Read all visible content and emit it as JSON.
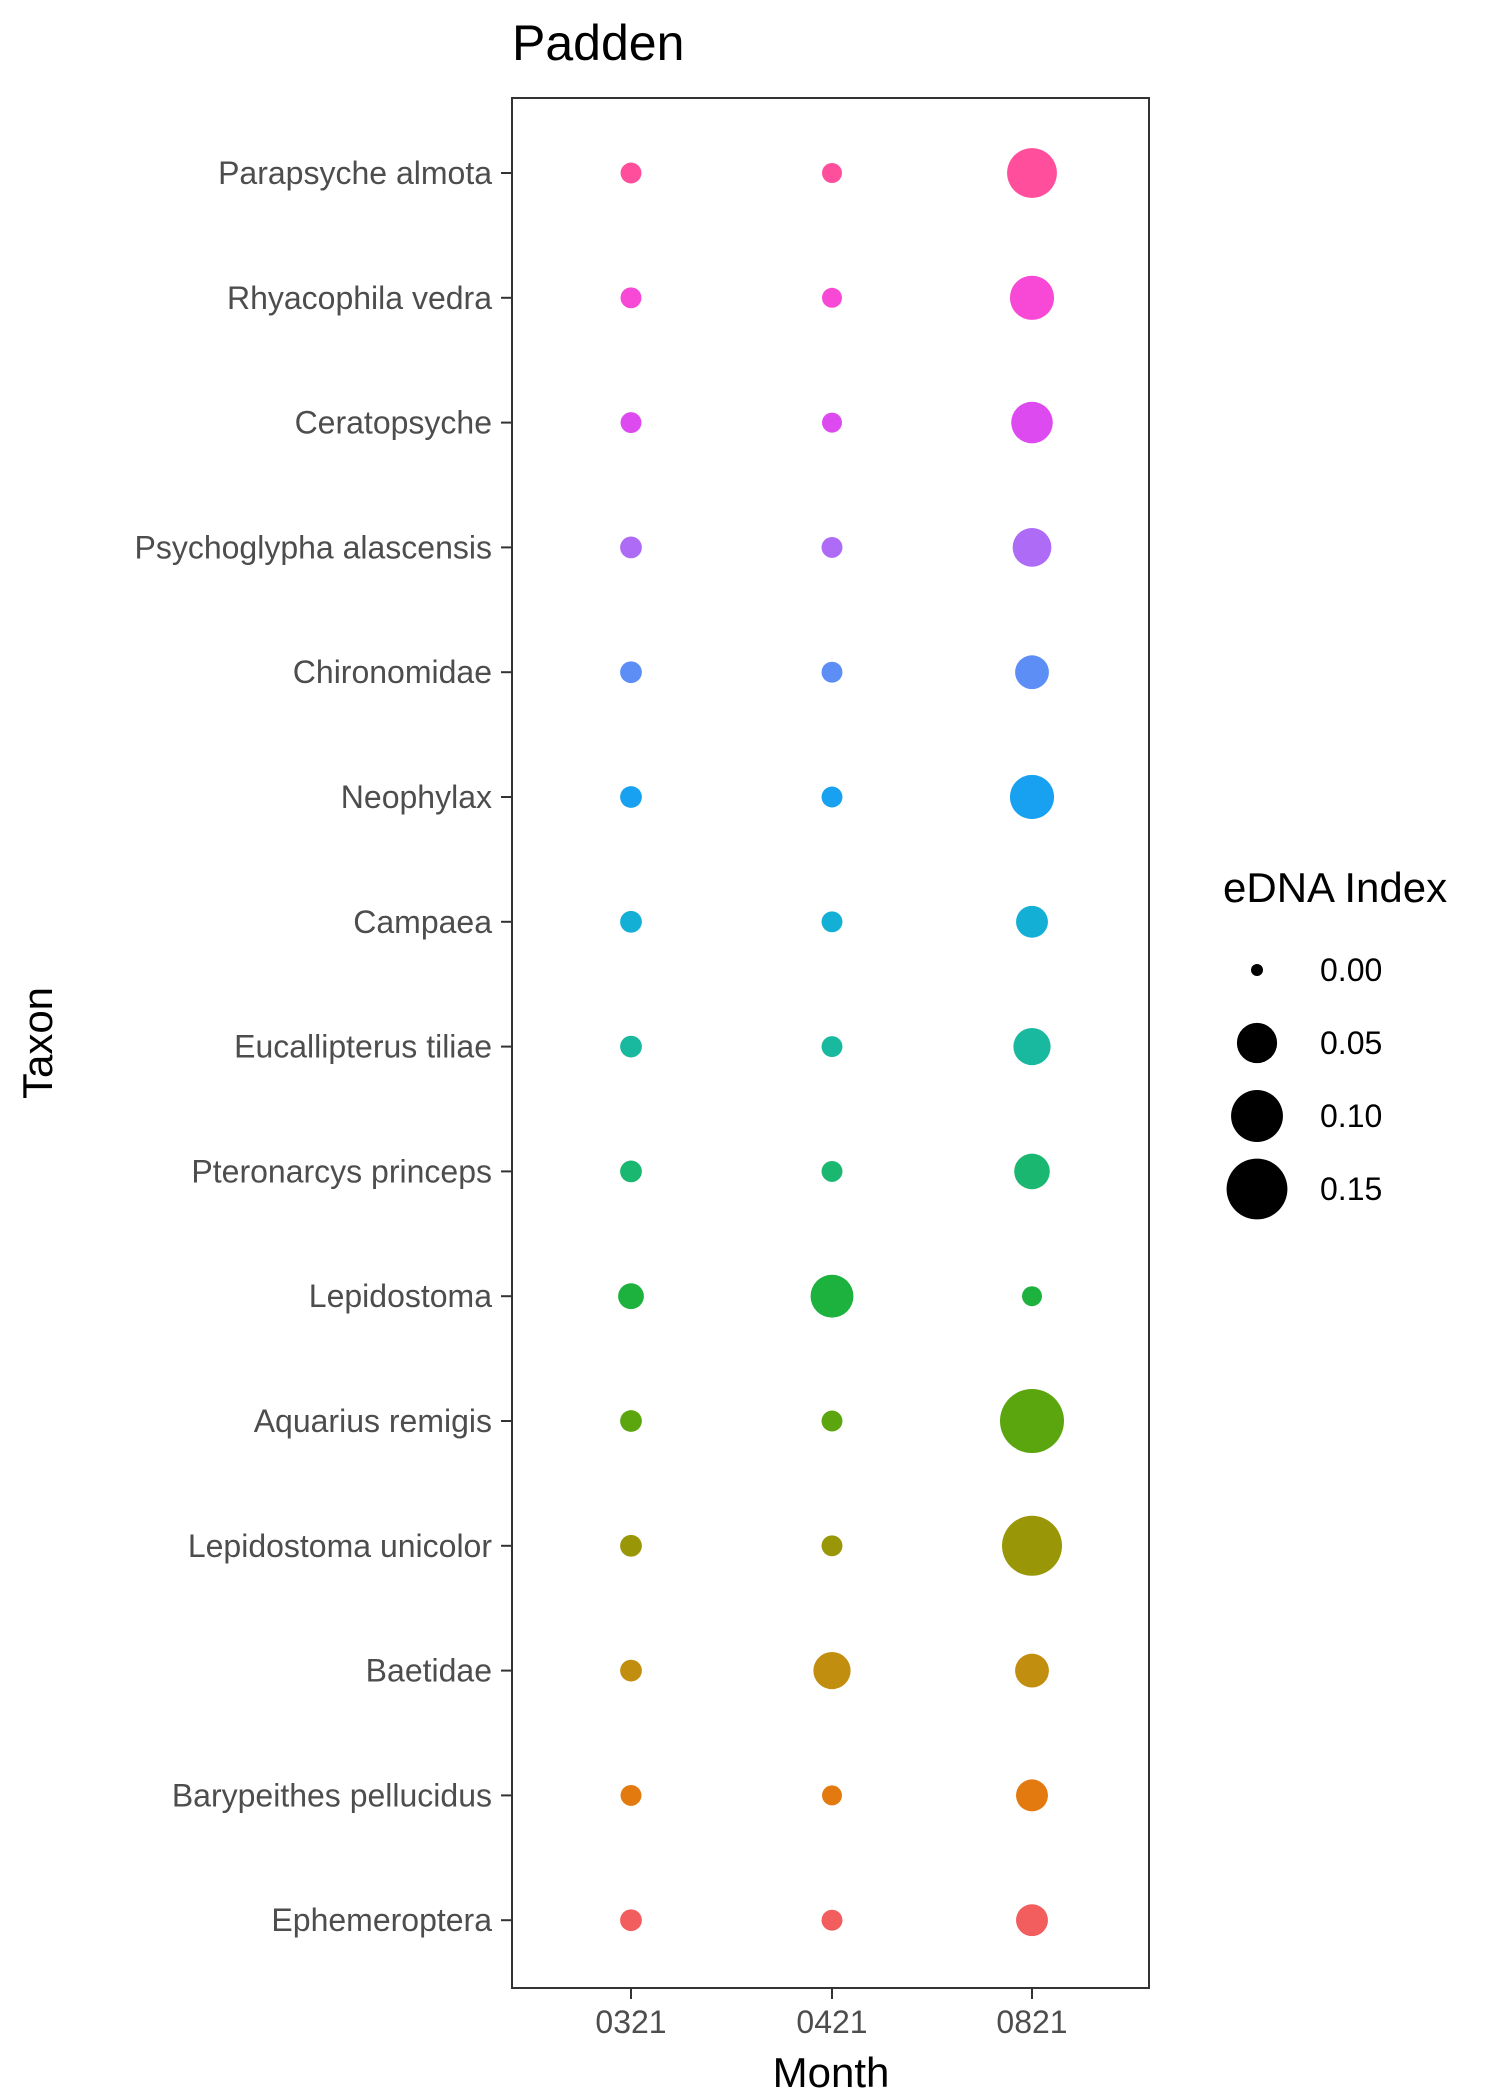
{
  "chart_data": {
    "type": "scatter",
    "title": "Padden",
    "xlabel": "Month",
    "ylabel": "Taxon",
    "x_categories": [
      "0321",
      "0421",
      "0821"
    ],
    "y_categories": [
      "Parapsyche almota",
      "Rhyacophila vedra",
      "Ceratopsyche",
      "Psychoglypha alascensis",
      "Chironomidae",
      "Neophylax",
      "Campaea",
      "Eucallipterus tiliae",
      "Pteronarcys princeps",
      "Lepidostoma",
      "Aquarius remigis",
      "Lepidostoma unicolor",
      "Baetidae",
      "Barypeithes pellucidus",
      "Ephemeroptera"
    ],
    "colors": {
      "Parapsyche almota": "#FF4F9C",
      "Rhyacophila vedra": "#F849D6",
      "Ceratopsyche": "#DD4BF0",
      "Psychoglypha alascensis": "#AE6BF6",
      "Chironomidae": "#5C8EF6",
      "Neophylax": "#17A1F0",
      "Campaea": "#14AFD5",
      "Eucallipterus tiliae": "#19B9A0",
      "Pteronarcys princeps": "#19B76F",
      "Lepidostoma": "#1DB23E",
      "Aquarius remigis": "#5BA50E",
      "Lepidostoma unicolor": "#999608",
      "Baetidae": "#C28E10",
      "Barypeithes pellucidus": "#E37A10",
      "Ephemeroptera": "#F25E5E"
    },
    "points": [
      {
        "taxon": "Parapsyche almota",
        "values": [
          0.005,
          0.004,
          0.09
        ]
      },
      {
        "taxon": "Rhyacophila vedra",
        "values": [
          0.005,
          0.004,
          0.065
        ]
      },
      {
        "taxon": "Ceratopsyche",
        "values": [
          0.005,
          0.004,
          0.055
        ]
      },
      {
        "taxon": "Psychoglypha alascensis",
        "values": [
          0.006,
          0.005,
          0.045
        ]
      },
      {
        "taxon": "Chironomidae",
        "values": [
          0.006,
          0.005,
          0.03
        ]
      },
      {
        "taxon": "Neophylax",
        "values": [
          0.006,
          0.005,
          0.065
        ]
      },
      {
        "taxon": "Campaea",
        "values": [
          0.006,
          0.005,
          0.025
        ]
      },
      {
        "taxon": "Eucallipterus tiliae",
        "values": [
          0.006,
          0.005,
          0.04
        ]
      },
      {
        "taxon": "Pteronarcys princeps",
        "values": [
          0.006,
          0.005,
          0.035
        ]
      },
      {
        "taxon": "Lepidostoma",
        "values": [
          0.012,
          0.06,
          0.004
        ]
      },
      {
        "taxon": "Aquarius remigis",
        "values": [
          0.006,
          0.005,
          0.17
        ]
      },
      {
        "taxon": "Lepidostoma unicolor",
        "values": [
          0.006,
          0.005,
          0.145
        ]
      },
      {
        "taxon": "Baetidae",
        "values": [
          0.006,
          0.04,
          0.03
        ]
      },
      {
        "taxon": "Barypeithes pellucidus",
        "values": [
          0.005,
          0.004,
          0.025
        ]
      },
      {
        "taxon": "Ephemeroptera",
        "values": [
          0.006,
          0.005,
          0.025
        ]
      }
    ],
    "size_legend": {
      "title": "eDNA Index",
      "breaks": [
        0.0,
        0.05,
        0.1,
        0.15
      ],
      "labels": [
        "0.00",
        "0.05",
        "0.10",
        "0.15"
      ],
      "placement": "right"
    },
    "grid": false
  }
}
